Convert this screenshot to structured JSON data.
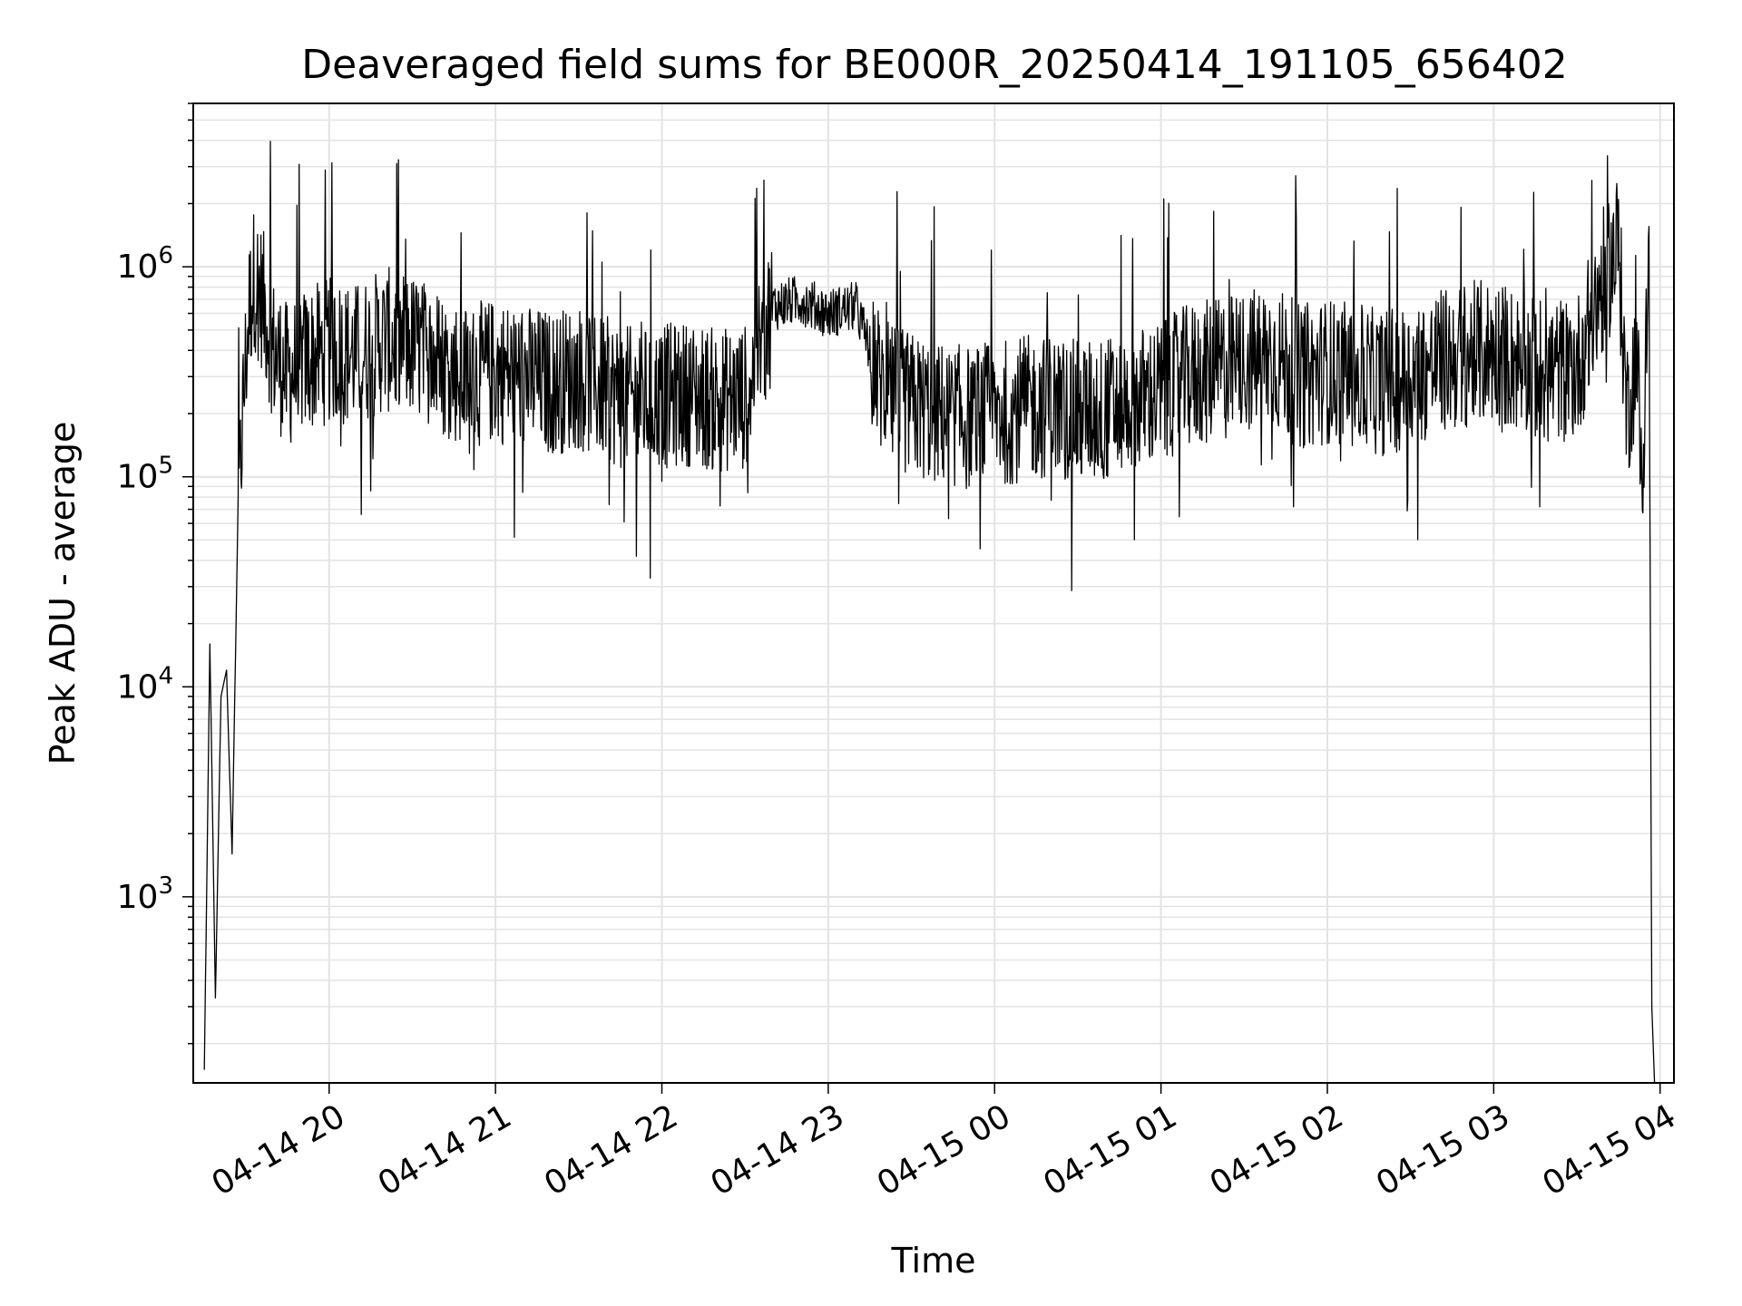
{
  "chart_data": {
    "type": "line",
    "title": "Deaveraged field sums for BE000R_20250414_191105_656402",
    "xlabel": "Time",
    "ylabel": "Peak ADU - average",
    "y_scale": "log",
    "x_range": [
      "2025-04-14 19:11",
      "2025-04-15 04:05"
    ],
    "ylim": [
      130,
      6000000
    ],
    "grid": true,
    "line_color": "#000000",
    "x_ticks": [
      {
        "t": "2025-04-14 20:00",
        "label": "04-14 20"
      },
      {
        "t": "2025-04-14 21:00",
        "label": "04-14 21"
      },
      {
        "t": "2025-04-14 22:00",
        "label": "04-14 22"
      },
      {
        "t": "2025-04-14 23:00",
        "label": "04-14 23"
      },
      {
        "t": "2025-04-15 00:00",
        "label": "04-15 00"
      },
      {
        "t": "2025-04-15 01:00",
        "label": "04-15 01"
      },
      {
        "t": "2025-04-15 02:00",
        "label": "04-15 02"
      },
      {
        "t": "2025-04-15 03:00",
        "label": "04-15 03"
      },
      {
        "t": "2025-04-15 04:00",
        "label": "04-15 04"
      }
    ],
    "y_ticks": [
      {
        "value": 1000,
        "base": "10",
        "exp": "3"
      },
      {
        "value": 10000,
        "base": "10",
        "exp": "4"
      },
      {
        "value": 100000,
        "base": "10",
        "exp": "5"
      },
      {
        "value": 1000000,
        "base": "10",
        "exp": "6"
      }
    ],
    "series": [
      {
        "x": [
          "2025-04-14 19:15",
          "2025-04-14 19:17",
          "2025-04-14 19:19",
          "2025-04-14 19:21",
          "2025-04-14 19:23",
          "2025-04-14 19:25",
          "2025-04-14 19:27",
          "2025-04-14 19:29",
          "2025-04-14 19:31",
          "2025-04-14 19:33",
          "2025-04-14 19:36",
          "2025-04-14 19:40",
          "2025-04-14 19:45",
          "2025-04-14 19:50",
          "2025-04-14 20:00",
          "2025-04-14 20:10",
          "2025-04-14 20:20",
          "2025-04-14 20:30",
          "2025-04-14 20:40",
          "2025-04-14 20:50",
          "2025-04-14 21:00",
          "2025-04-14 21:10",
          "2025-04-14 21:20",
          "2025-04-14 21:30",
          "2025-04-14 21:40",
          "2025-04-14 21:50",
          "2025-04-14 22:00",
          "2025-04-14 22:10",
          "2025-04-14 22:20",
          "2025-04-14 22:30",
          "2025-04-14 22:40",
          "2025-04-14 22:50",
          "2025-04-14 23:00",
          "2025-04-14 23:10",
          "2025-04-14 23:20",
          "2025-04-14 23:30",
          "2025-04-14 23:40",
          "2025-04-14 23:50",
          "2025-04-15 00:00",
          "2025-04-15 00:10",
          "2025-04-15 00:20",
          "2025-04-15 00:30",
          "2025-04-15 00:40",
          "2025-04-15 00:50",
          "2025-04-15 01:00",
          "2025-04-15 01:10",
          "2025-04-15 01:20",
          "2025-04-15 01:30",
          "2025-04-15 01:40",
          "2025-04-15 01:50",
          "2025-04-15 02:00",
          "2025-04-15 02:10",
          "2025-04-15 02:20",
          "2025-04-15 02:30",
          "2025-04-15 02:40",
          "2025-04-15 02:50",
          "2025-04-15 03:00",
          "2025-04-15 03:10",
          "2025-04-15 03:20",
          "2025-04-15 03:30",
          "2025-04-15 03:40",
          "2025-04-15 03:45",
          "2025-04-15 03:48",
          "2025-04-15 03:51",
          "2025-04-15 03:54",
          "2025-04-15 03:56",
          "2025-04-15 03:57",
          "2025-04-15 03:58"
        ],
        "y": [
          150,
          16000,
          330,
          9000,
          12000,
          1600,
          55000,
          220000,
          600000,
          900000,
          700000,
          400000,
          300000,
          350000,
          400000,
          380000,
          450000,
          420000,
          350000,
          300000,
          320000,
          300000,
          280000,
          300000,
          260000,
          230000,
          240000,
          250000,
          230000,
          240000,
          650000,
          700000,
          600000,
          650000,
          250000,
          220000,
          200000,
          190000,
          200000,
          210000,
          220000,
          200000,
          210000,
          230000,
          250000,
          300000,
          320000,
          350000,
          380000,
          300000,
          320000,
          300000,
          280000,
          300000,
          350000,
          380000,
          400000,
          350000,
          320000,
          330000,
          900000,
          1300000,
          200000,
          350000,
          130000,
          1300000,
          300,
          130
        ]
      }
    ]
  }
}
